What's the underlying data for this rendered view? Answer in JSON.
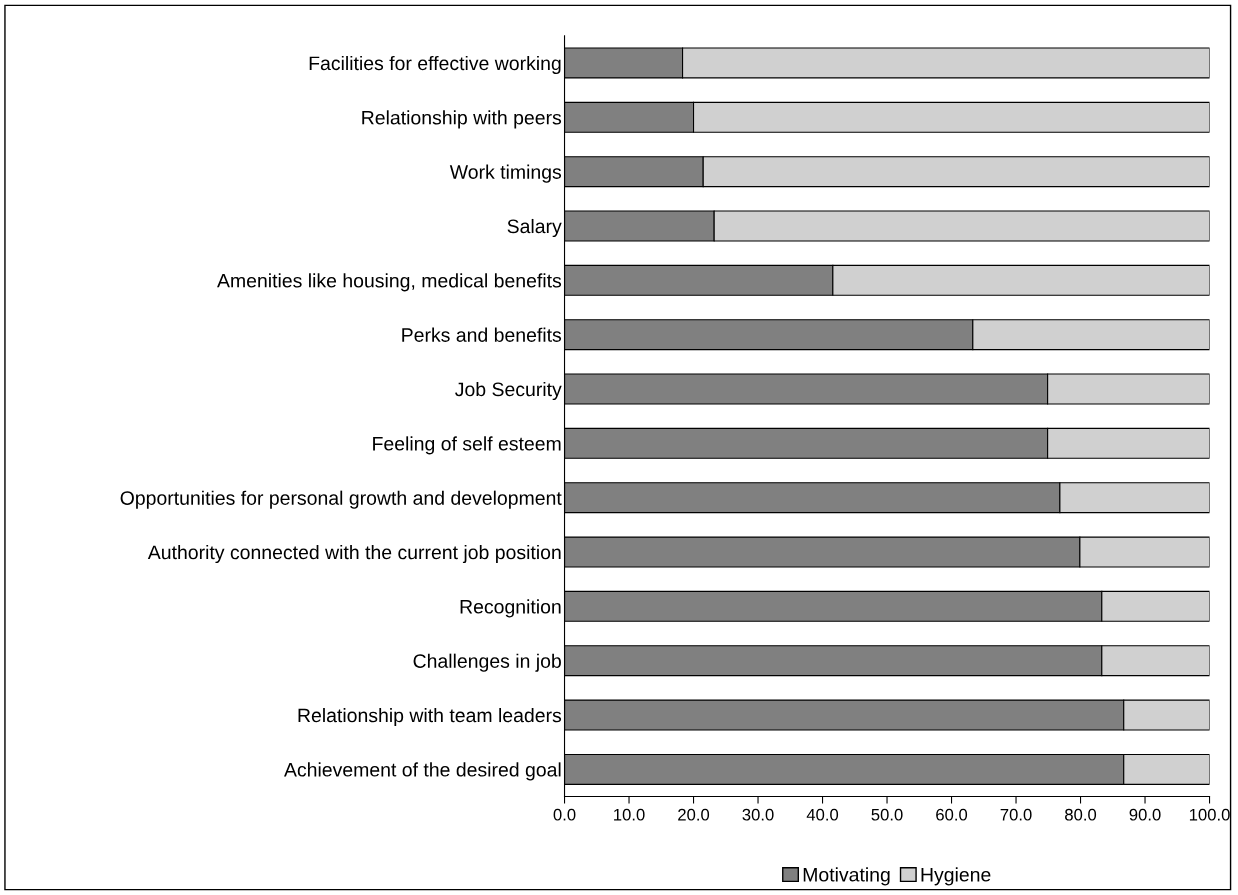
{
  "chart_data": {
    "type": "bar",
    "orientation": "horizontal",
    "stacked": true,
    "categories": [
      "Facilities for effective working",
      "Relationship with peers",
      "Work timings",
      "Salary",
      "Amenities like housing, medical benefits",
      "Perks and benefits",
      "Job Security",
      "Feeling of self esteem",
      "Opportunities for personal growth and development",
      "Authority connected with the current job position",
      "Recognition",
      "Challenges in job",
      "Relationship with team leaders",
      "Achievement of the desired goal"
    ],
    "series": [
      {
        "name": "Motivating",
        "color": "#808080",
        "values": [
          18.3,
          20.0,
          21.5,
          23.2,
          41.6,
          63.3,
          74.9,
          74.9,
          76.8,
          79.9,
          83.3,
          83.3,
          86.7,
          86.7
        ]
      },
      {
        "name": "Hygiene",
        "color": "#d0d0d0",
        "values": [
          81.7,
          80.0,
          78.5,
          76.8,
          58.4,
          36.7,
          25.1,
          25.1,
          23.2,
          20.1,
          16.7,
          16.7,
          13.3,
          13.3
        ]
      }
    ],
    "xlim": [
      0,
      100
    ],
    "xticks": [
      {
        "value": 0,
        "label": "0.0"
      },
      {
        "value": 10,
        "label": "10.0"
      },
      {
        "value": 20,
        "label": "20.0"
      },
      {
        "value": 30,
        "label": "30.0"
      },
      {
        "value": 40,
        "label": "40.0"
      },
      {
        "value": 50,
        "label": "50.0"
      },
      {
        "value": 60,
        "label": "60.0"
      },
      {
        "value": 70,
        "label": "70.0"
      },
      {
        "value": 80,
        "label": "80.0"
      },
      {
        "value": 90,
        "label": "90.0"
      },
      {
        "value": 100,
        "label": "100.0"
      }
    ],
    "grid": false,
    "legend": "bottom"
  }
}
